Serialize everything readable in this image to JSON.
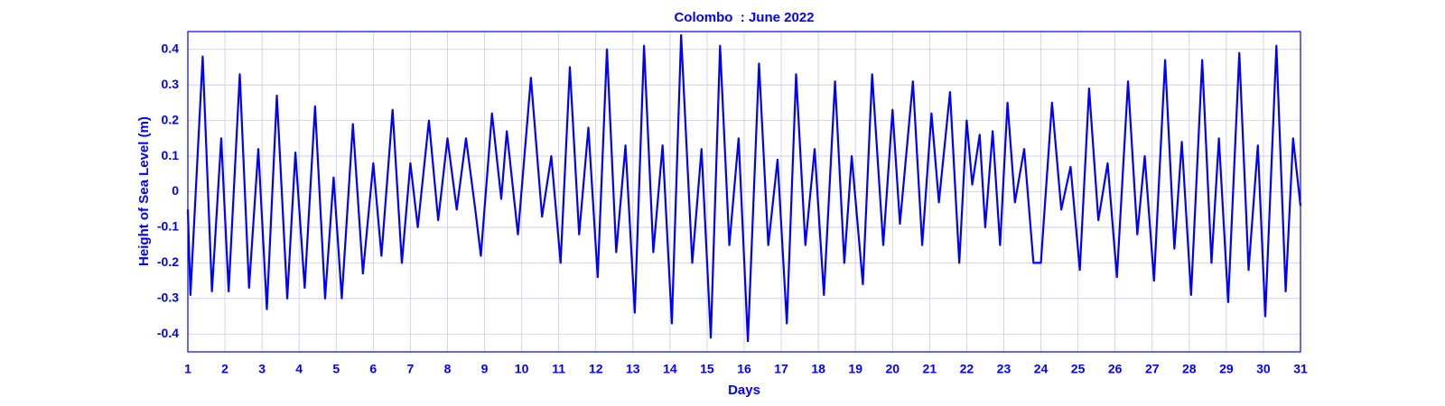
{
  "chart_data": {
    "type": "line",
    "title": "Colombo  : June 2022",
    "x_label": "Days",
    "y_label": "Height of Sea Level (m)",
    "xlim": [
      1,
      31
    ],
    "ylim": [
      -0.45,
      0.45
    ],
    "xticks": [
      1,
      2,
      3,
      4,
      5,
      6,
      7,
      8,
      9,
      10,
      11,
      12,
      13,
      14,
      15,
      16,
      17,
      18,
      19,
      20,
      21,
      22,
      23,
      24,
      25,
      26,
      27,
      28,
      29,
      30,
      31
    ],
    "yticks": [
      -0.4,
      -0.3,
      -0.2,
      -0.1,
      0,
      0.1,
      0.2,
      0.3,
      0.4
    ],
    "grid": true,
    "series": [
      {
        "color": "#0000ff",
        "x": [
          1.0,
          1.07,
          1.4,
          1.65,
          1.9,
          2.1,
          2.4,
          2.65,
          2.9,
          3.13,
          3.4,
          3.68,
          3.9,
          4.15,
          4.43,
          4.7,
          4.93,
          5.15,
          5.45,
          5.72,
          6.0,
          6.22,
          6.52,
          6.77,
          7.0,
          7.2,
          7.5,
          7.75,
          8.0,
          8.25,
          8.5,
          8.75,
          8.9,
          9.2,
          9.45,
          9.6,
          9.9,
          10.25,
          10.55,
          10.8,
          11.05,
          11.3,
          11.55,
          11.8,
          12.05,
          12.3,
          12.55,
          12.8,
          13.05,
          13.3,
          13.55,
          13.8,
          14.05,
          14.3,
          14.6,
          14.85,
          15.1,
          15.35,
          15.6,
          15.85,
          16.1,
          16.4,
          16.65,
          16.9,
          17.15,
          17.4,
          17.65,
          17.9,
          18.15,
          18.45,
          18.7,
          18.9,
          19.2,
          19.45,
          19.75,
          20.0,
          20.2,
          20.55,
          20.8,
          21.05,
          21.25,
          21.55,
          21.8,
          22.0,
          22.15,
          22.35,
          22.5,
          22.7,
          22.9,
          23.1,
          23.3,
          23.55,
          23.8,
          24.0,
          24.3,
          24.55,
          24.8,
          25.05,
          25.3,
          25.55,
          25.8,
          26.05,
          26.35,
          26.6,
          26.8,
          27.05,
          27.35,
          27.6,
          27.8,
          28.05,
          28.35,
          28.6,
          28.8,
          29.05,
          29.35,
          29.6,
          29.85,
          30.05,
          30.35,
          30.6,
          30.8,
          31.0
        ],
        "values": [
          -0.05,
          -0.29,
          0.38,
          -0.28,
          0.15,
          -0.28,
          0.33,
          -0.27,
          0.12,
          -0.33,
          0.27,
          -0.3,
          0.11,
          -0.27,
          0.24,
          -0.3,
          0.04,
          -0.3,
          0.19,
          -0.23,
          0.08,
          -0.18,
          0.23,
          -0.2,
          0.08,
          -0.1,
          0.2,
          -0.08,
          0.15,
          -0.05,
          0.15,
          -0.05,
          -0.18,
          0.22,
          -0.02,
          0.17,
          -0.12,
          0.32,
          -0.07,
          0.1,
          -0.2,
          0.35,
          -0.12,
          0.18,
          -0.24,
          0.4,
          -0.17,
          0.13,
          -0.34,
          0.41,
          -0.17,
          0.13,
          -0.37,
          0.44,
          -0.2,
          0.12,
          -0.41,
          0.41,
          -0.15,
          0.15,
          -0.42,
          0.36,
          -0.15,
          0.09,
          -0.37,
          0.33,
          -0.15,
          0.12,
          -0.29,
          0.31,
          -0.2,
          0.1,
          -0.26,
          0.33,
          -0.15,
          0.23,
          -0.09,
          0.31,
          -0.15,
          0.22,
          -0.03,
          0.28,
          -0.2,
          0.2,
          0.02,
          0.16,
          -0.1,
          0.17,
          -0.15,
          0.25,
          -0.03,
          0.12,
          -0.2,
          -0.2,
          0.25,
          -0.05,
          0.07,
          -0.22,
          0.29,
          -0.08,
          0.08,
          -0.24,
          0.31,
          -0.12,
          0.1,
          -0.25,
          0.37,
          -0.16,
          0.14,
          -0.29,
          0.37,
          -0.2,
          0.15,
          -0.31,
          0.39,
          -0.22,
          0.13,
          -0.35,
          0.41,
          -0.28,
          0.15,
          -0.04
        ]
      }
    ]
  }
}
